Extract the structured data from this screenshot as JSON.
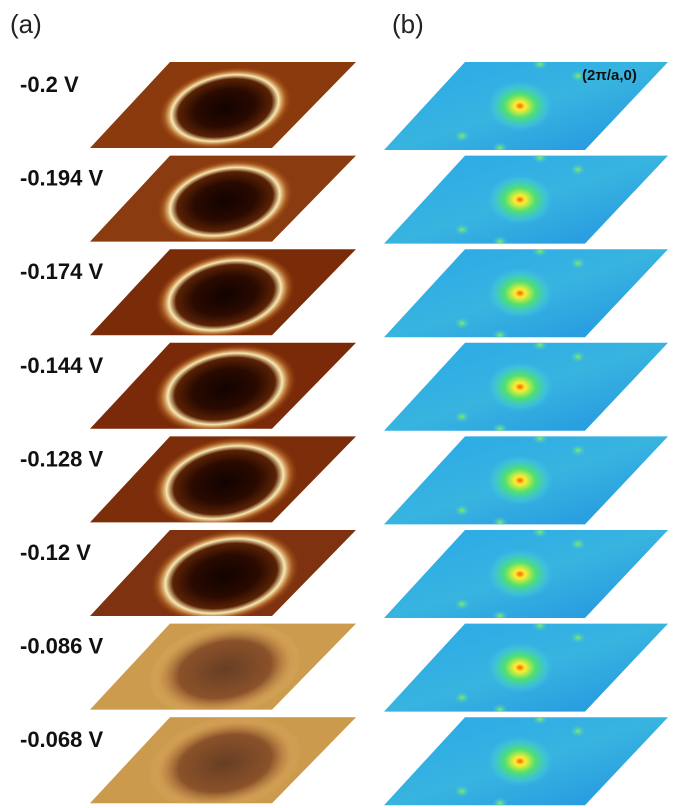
{
  "panels": [
    "(a)",
    "(b)"
  ],
  "annotation": "(2π/a,0)",
  "rows": [
    "-0.2 V",
    "-0.194 V",
    "-0.174 V",
    "-0.144 V",
    "-0.128 V",
    "-0.12 V",
    "-0.086 V",
    "-0.068 V"
  ]
}
